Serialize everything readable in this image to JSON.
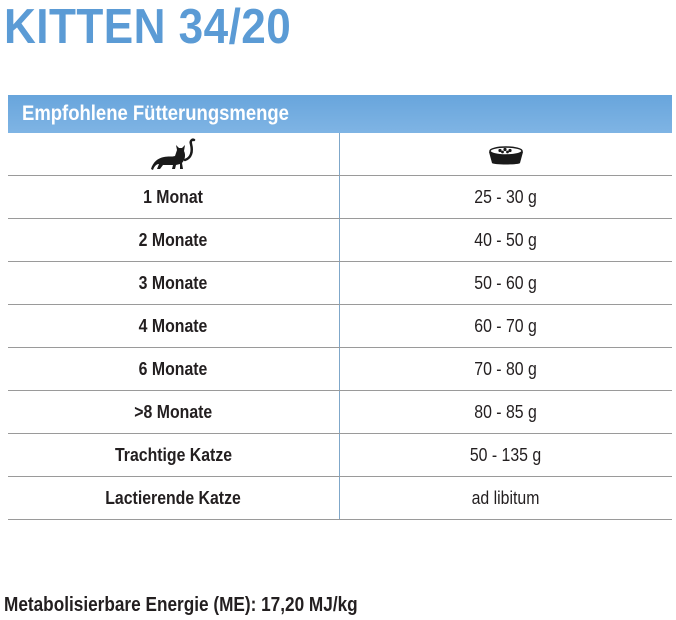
{
  "title": "KITTEN 34/20",
  "table": {
    "header": "Empfohlene Fütterungsmenge",
    "icons": {
      "left": "cat-icon",
      "right": "food-bowl-icon"
    },
    "rows": [
      {
        "age": "1 Monat",
        "amount": "25 - 30 g"
      },
      {
        "age": "2 Monate",
        "amount": "40 - 50 g"
      },
      {
        "age": "3 Monate",
        "amount": "50 - 60 g"
      },
      {
        "age": "4 Monate",
        "amount": "60 - 70 g"
      },
      {
        "age": "6 Monate",
        "amount": "70 - 80 g"
      },
      {
        "age": ">8 Monate",
        "amount": "80 - 85 g"
      },
      {
        "age": "Trachtige Katze",
        "amount": "50 - 135 g"
      },
      {
        "age": "Lactierende Katze",
        "amount": "ad libitum"
      }
    ]
  },
  "footer": "Metabolisierbare Energie (ME): 17,20 MJ/kg",
  "colors": {
    "title": "#5b9bd5",
    "header_bar": "#6fa9de",
    "text": "#231f20"
  }
}
